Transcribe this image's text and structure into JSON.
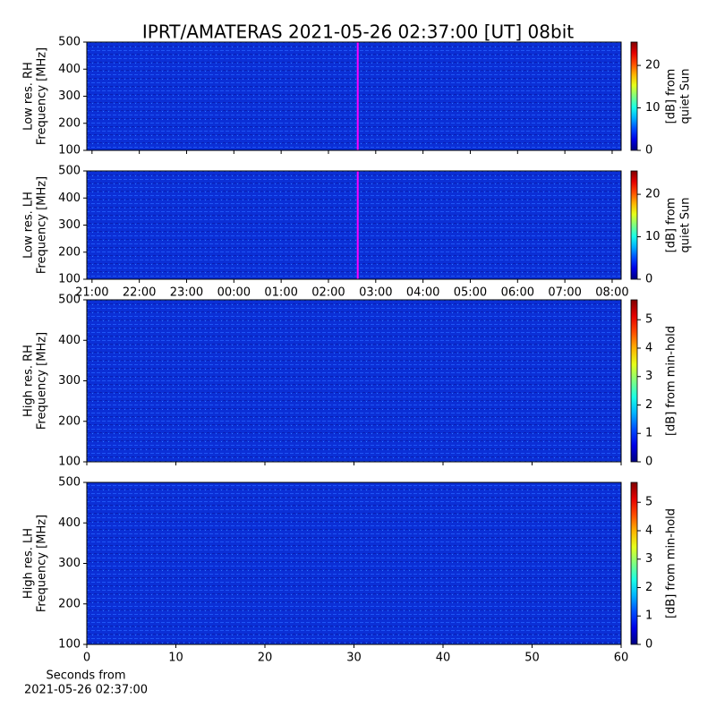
{
  "chart_data": [
    {
      "type": "heatmap",
      "title": "IPRT/AMATERAS 2021-05-26 02:37:00 [UT]   08bit",
      "ylabel": [
        "Low res. RH",
        "Frequency [MHz]"
      ],
      "xlim": [
        20.89,
        32.19
      ],
      "xticks": [
        {
          "value": 21,
          "label": "21:00"
        },
        {
          "value": 22,
          "label": "22:00"
        },
        {
          "value": 23,
          "label": "23:00"
        },
        {
          "value": 24,
          "label": "00:00"
        },
        {
          "value": 25,
          "label": "01:00"
        },
        {
          "value": 26,
          "label": "02:00"
        },
        {
          "value": 27,
          "label": "03:00"
        },
        {
          "value": 28,
          "label": "04:00"
        },
        {
          "value": 29,
          "label": "05:00"
        },
        {
          "value": 30,
          "label": "06:00"
        },
        {
          "value": 31,
          "label": "07:00"
        },
        {
          "value": 32,
          "label": "08:00"
        }
      ],
      "ylim": [
        100,
        500
      ],
      "yticks": [
        100,
        200,
        300,
        400,
        500
      ],
      "colorbar_label": [
        "[dB] from",
        "quiet Sun"
      ],
      "clim": [
        0,
        25.5
      ],
      "cticks": [
        0,
        10,
        20
      ],
      "colormap": "jet",
      "marker_x": 26.62,
      "marker_color": "#ff00ff"
    },
    {
      "type": "heatmap",
      "ylabel": [
        "Low res. LH",
        "Frequency [MHz]"
      ],
      "xlim": [
        20.89,
        32.19
      ],
      "xticks": [
        {
          "value": 21,
          "label": "21:00"
        },
        {
          "value": 22,
          "label": "22:00"
        },
        {
          "value": 23,
          "label": "23:00"
        },
        {
          "value": 24,
          "label": "00:00"
        },
        {
          "value": 25,
          "label": "01:00"
        },
        {
          "value": 26,
          "label": "02:00"
        },
        {
          "value": 27,
          "label": "03:00"
        },
        {
          "value": 28,
          "label": "04:00"
        },
        {
          "value": 29,
          "label": "05:00"
        },
        {
          "value": 30,
          "label": "06:00"
        },
        {
          "value": 31,
          "label": "07:00"
        },
        {
          "value": 32,
          "label": "08:00"
        }
      ],
      "ylim": [
        100,
        500
      ],
      "yticks": [
        100,
        200,
        300,
        400,
        500
      ],
      "colorbar_label": [
        "[dB] from",
        "quiet Sun"
      ],
      "clim": [
        0,
        25.5
      ],
      "cticks": [
        0,
        10,
        20
      ],
      "colormap": "jet",
      "marker_x": 26.62,
      "marker_color": "#ff00ff"
    },
    {
      "type": "heatmap",
      "ylabel": [
        "High res. RH",
        "Frequency [MHz]"
      ],
      "xlim": [
        0,
        60
      ],
      "xticks": [
        0,
        10,
        20,
        30,
        40,
        50,
        60
      ],
      "ylim": [
        100,
        500
      ],
      "yticks": [
        100,
        200,
        300,
        400,
        500
      ],
      "colorbar_label": [
        "[dB] from min-hold"
      ],
      "clim": [
        0,
        5.7
      ],
      "cticks": [
        0,
        1,
        2,
        3,
        4,
        5
      ],
      "colormap": "jet"
    },
    {
      "type": "heatmap",
      "ylabel": [
        "High res. LH",
        "Frequency [MHz]"
      ],
      "xlim": [
        0,
        60
      ],
      "xticks": [
        0,
        10,
        20,
        30,
        40,
        50,
        60
      ],
      "xlabel": [
        "Seconds from",
        "2021-05-26 02:37:00"
      ],
      "ylim": [
        100,
        500
      ],
      "yticks": [
        100,
        200,
        300,
        400,
        500
      ],
      "colorbar_label": [
        "[dB] from min-hold"
      ],
      "clim": [
        0,
        5.7
      ],
      "cticks": [
        0,
        1,
        2,
        3,
        4,
        5
      ],
      "colormap": "jet"
    }
  ]
}
